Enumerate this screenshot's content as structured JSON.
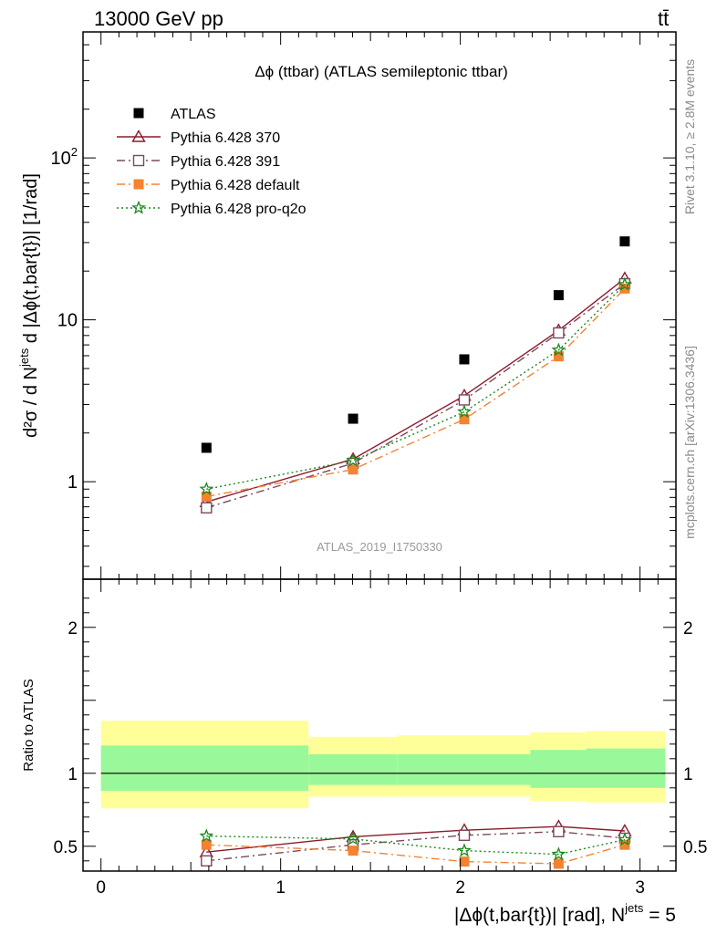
{
  "header": {
    "energy_label": "13000 GeV pp",
    "process_label": "tt̄"
  },
  "side_labels": {
    "rivet": "Rivet 3.1.10, ≥ 2.8M events",
    "mcplots": "mcplots.cern.ch [arXiv:1306.3436]"
  },
  "chart_data": [
    {
      "type": "line",
      "title": "Δϕ (ttbar) (ATLAS semileptonic ttbar)",
      "watermark": "ATLAS_2019_I1750330",
      "ylabel": "d²σ / d N^jets d |Δϕ(t,bar{t})| [1/rad]",
      "yscale": "log",
      "ylim": [
        0.25,
        600
      ],
      "xlim": [
        -0.1,
        3.2
      ],
      "yticks": [
        {
          "v": 1,
          "label": "1"
        },
        {
          "v": 10,
          "label": "10"
        },
        {
          "v": 100,
          "label": "10²"
        }
      ],
      "legend_position": "top-left",
      "series": [
        {
          "name": "ATLAS",
          "color": "#000000",
          "marker": "filled-square",
          "line": "none",
          "x": [
            0.587,
            1.403,
            2.022,
            2.547,
            2.915
          ],
          "y": [
            1.62,
            2.45,
            5.7,
            14.2,
            30.5
          ]
        },
        {
          "name": "Pythia 6.428 370",
          "color": "#8b1a2b",
          "marker": "open-triangle",
          "line": "solid",
          "x": [
            0.587,
            1.403,
            2.022,
            2.547,
            2.915
          ],
          "y": [
            0.75,
            1.38,
            3.4,
            8.6,
            18.0
          ]
        },
        {
          "name": "Pythia 6.428 391",
          "color": "#7a4a5e",
          "marker": "open-square",
          "line": "dashdot",
          "x": [
            0.587,
            1.403,
            2.022,
            2.547,
            2.915
          ],
          "y": [
            0.69,
            1.3,
            3.2,
            8.3,
            16.7
          ]
        },
        {
          "name": "Pythia 6.428 default",
          "color": "#f58231",
          "marker": "filled-square",
          "line": "dashdot",
          "x": [
            0.587,
            1.403,
            2.022,
            2.547,
            2.915
          ],
          "y": [
            0.81,
            1.19,
            2.43,
            5.95,
            15.6
          ]
        },
        {
          "name": "Pythia 6.428 pro-q2o",
          "color": "#1a8a1a",
          "marker": "star",
          "line": "dotted",
          "x": [
            0.587,
            1.403,
            2.022,
            2.547,
            2.915
          ],
          "y": [
            0.9,
            1.35,
            2.7,
            6.5,
            16.5
          ]
        }
      ]
    },
    {
      "type": "line",
      "ylabel": "Ratio to ATLAS",
      "xlabel": "|Δϕ(t,bar{t})| [rad], N^jets = 5",
      "ylim": [
        0.33,
        2.33
      ],
      "xlim": [
        -0.1,
        3.2
      ],
      "xticks": [
        0,
        1,
        2,
        3
      ],
      "yticks": [
        0.5,
        1,
        2
      ],
      "uncertainty_bands": {
        "colors": {
          "outer": "#ffff99",
          "inner": "#99f899"
        },
        "bins": [
          {
            "x": [
              0.0,
              1.155
            ],
            "outer": [
              0.76,
              1.36
            ],
            "inner": [
              0.88,
              1.19
            ]
          },
          {
            "x": [
              1.155,
              1.65
            ],
            "outer": [
              0.84,
              1.25
            ],
            "inner": [
              0.92,
              1.13
            ]
          },
          {
            "x": [
              1.65,
              2.39
            ],
            "outer": [
              0.84,
              1.26
            ],
            "inner": [
              0.92,
              1.13
            ]
          },
          {
            "x": [
              2.39,
              2.7
            ],
            "outer": [
              0.81,
              1.28
            ],
            "inner": [
              0.9,
              1.16
            ]
          },
          {
            "x": [
              2.7,
              3.14
            ],
            "outer": [
              0.8,
              1.29
            ],
            "inner": [
              0.9,
              1.17
            ]
          }
        ]
      },
      "series": [
        {
          "name": "Pythia 6.428 370",
          "color": "#8b1a2b",
          "marker": "open-triangle",
          "line": "solid",
          "x": [
            0.587,
            1.403,
            2.022,
            2.547,
            2.915
          ],
          "y": [
            0.46,
            0.565,
            0.61,
            0.635,
            0.605
          ]
        },
        {
          "name": "Pythia 6.428 391",
          "color": "#7a4a5e",
          "marker": "open-square",
          "line": "dashdot",
          "x": [
            0.587,
            1.403,
            2.022,
            2.547,
            2.915
          ],
          "y": [
            0.4,
            0.51,
            0.575,
            0.6,
            0.555
          ]
        },
        {
          "name": "Pythia 6.428 default",
          "color": "#f58231",
          "marker": "filled-square",
          "line": "dashdot",
          "x": [
            0.587,
            1.403,
            2.022,
            2.547,
            2.915
          ],
          "y": [
            0.51,
            0.47,
            0.395,
            0.38,
            0.51
          ]
        },
        {
          "name": "Pythia 6.428 pro-q2o",
          "color": "#1a8a1a",
          "marker": "star",
          "line": "dotted",
          "x": [
            0.587,
            1.403,
            2.022,
            2.547,
            2.915
          ],
          "y": [
            0.57,
            0.55,
            0.47,
            0.445,
            0.545
          ]
        }
      ]
    }
  ]
}
